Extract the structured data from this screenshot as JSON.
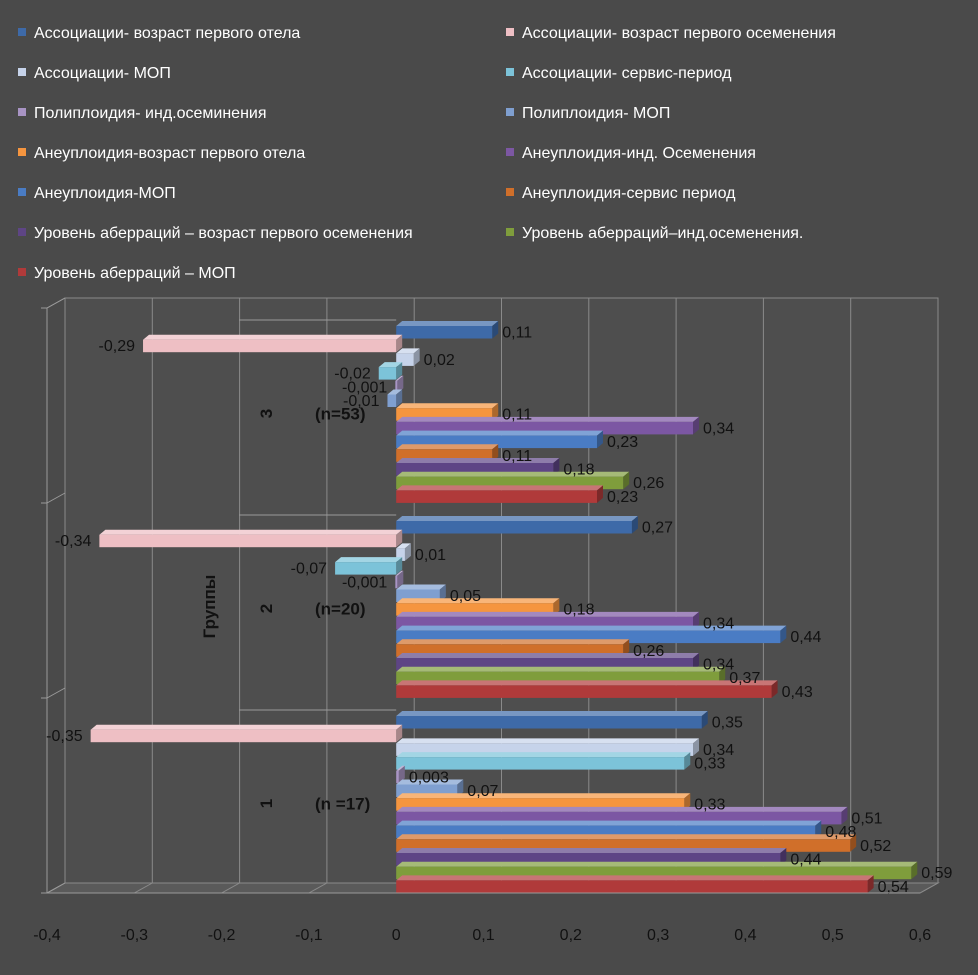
{
  "chart_data": {
    "type": "bar",
    "orientation": "horizontal",
    "style": "3d-clustered",
    "ylabel": "Группы",
    "xlim": [
      -0.4,
      0.6
    ],
    "x_ticks": [
      "-0,4",
      "-0,3",
      "-0,2",
      "-0,1",
      "0",
      "0,1",
      "0,2",
      "0,3",
      "0,4",
      "0,5",
      "0,6"
    ],
    "grid": true,
    "legend_position": "top",
    "categories": [
      "1",
      "2",
      "3"
    ],
    "category_notes": [
      "(n =17)",
      "(n=20)",
      "(n=53)"
    ],
    "series": [
      {
        "name": "Ассоциации- возраст первого отела",
        "color": "#3e6aa8",
        "values": [
          0.35,
          0.27,
          0.11
        ],
        "labels": [
          "0,35",
          "0,27",
          "0,11"
        ]
      },
      {
        "name": "Ассоциации- возраст первого осеменения",
        "color": "#eebfc4",
        "values": [
          -0.35,
          -0.34,
          -0.29
        ],
        "labels": [
          "-0,35",
          "-0,34",
          "-0,29"
        ]
      },
      {
        "name": "Ассоциации- МОП",
        "color": "#c6d3ea",
        "values": [
          0.34,
          0.01,
          0.02
        ],
        "labels": [
          "0,34",
          "0,01",
          "0,02"
        ]
      },
      {
        "name": "Ассоциации- сервис-период",
        "color": "#7cc3d9",
        "values": [
          0.33,
          -0.07,
          -0.02
        ],
        "labels": [
          "0,33",
          "-0,07",
          "-0,02"
        ]
      },
      {
        "name": "Полиплоидия- инд.осеминения",
        "color": "#a894c4",
        "values": [
          0.003,
          -0.001,
          -0.001
        ],
        "labels": [
          "0,003",
          "-0,001",
          "-0,001"
        ]
      },
      {
        "name": "Полиплоидия- МОП",
        "color": "#7f9fd0",
        "values": [
          0.07,
          0.05,
          -0.01
        ],
        "labels": [
          "0,07",
          "0,05",
          "-0,01"
        ]
      },
      {
        "name": "Анеуплоидия-возраст первого отела",
        "color": "#f5953f",
        "values": [
          0.33,
          0.18,
          0.11
        ],
        "labels": [
          "0,33",
          "0,18",
          "0,11"
        ]
      },
      {
        "name": "Анеуплоидия-инд. Осеменения",
        "color": "#7c57a3",
        "values": [
          0.51,
          0.34,
          0.34
        ],
        "labels": [
          "0,51",
          "0,34",
          "0,34"
        ]
      },
      {
        "name": "Анеуплоидия-МОП",
        "color": "#4a7cc4",
        "values": [
          0.48,
          0.44,
          0.23
        ],
        "labels": [
          "0,48",
          "0,44",
          "0,23"
        ]
      },
      {
        "name": "Анеуплоидия-сервис период",
        "color": "#d06f2a",
        "values": [
          0.52,
          0.26,
          0.11
        ],
        "labels": [
          "0,52",
          "0,26",
          "0,11"
        ]
      },
      {
        "name": "Уровень аберраций – возраст первого осеменения",
        "color": "#5e4585",
        "values": [
          0.44,
          0.34,
          0.18
        ],
        "labels": [
          "0,44",
          "0,34",
          "0,18"
        ]
      },
      {
        "name": "Уровень аберраций–инд.осеменения.",
        "color": "#7f9d3c",
        "values": [
          0.59,
          0.37,
          0.26
        ],
        "labels": [
          "0,59",
          "0,37",
          "0,26"
        ]
      },
      {
        "name": "Уровень аберраций – МОП",
        "color": "#b03a3a",
        "values": [
          0.54,
          0.43,
          0.23
        ],
        "labels": [
          "0,54",
          "0,43",
          "0,23"
        ]
      }
    ]
  }
}
